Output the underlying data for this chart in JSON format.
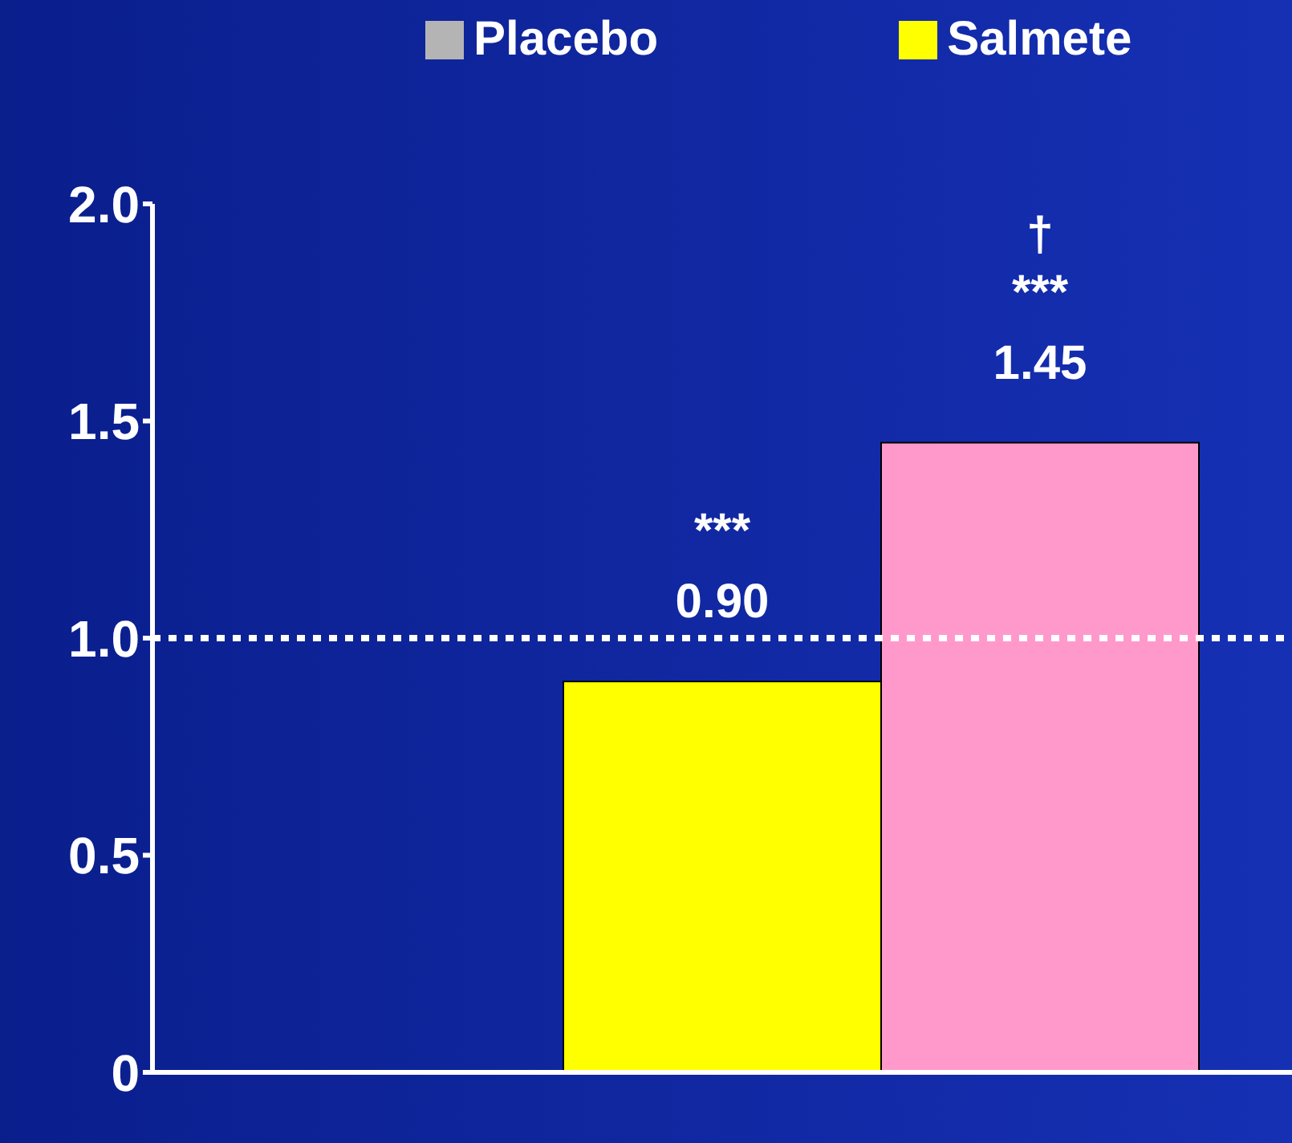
{
  "chart_data": {
    "type": "bar",
    "categories": [
      null
    ],
    "series": [
      {
        "name": "Placebo",
        "color": "#b4b4b4",
        "values": [
          null
        ]
      },
      {
        "name": "Salmete",
        "color": "#ffff00",
        "values": [
          0.9
        ],
        "value_labels": [
          "0.90"
        ]
      },
      {
        "color": "#ff99cc",
        "values": [
          1.45
        ],
        "value_labels": [
          "1.45"
        ]
      }
    ],
    "ylim": [
      0,
      2.0
    ],
    "yticks": [
      0,
      0.5,
      {
        "value": 1.0,
        "label": "1.0"
      },
      1.5,
      {
        "value": 2.0,
        "label": "2.0"
      }
    ],
    "ref_lines": [
      {
        "axis": "y",
        "value": 1.0,
        "color": "#ffffff",
        "line_style": "dotted"
      }
    ],
    "annotations": [
      "***",
      "***",
      "†"
    ],
    "legend": "top"
  }
}
